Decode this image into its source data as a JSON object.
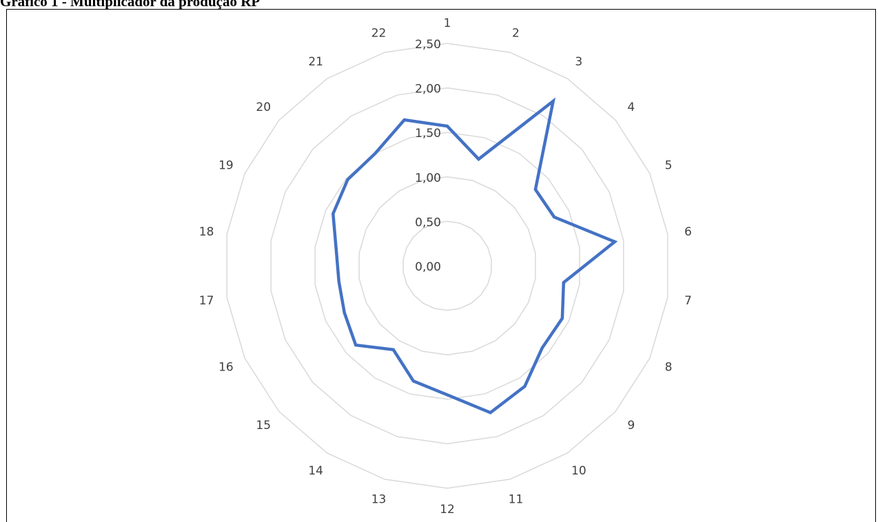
{
  "page": {
    "title": "Gráfico 1 - Multiplicador da produção RP"
  },
  "chart_data": {
    "type": "radar",
    "title": "",
    "categories": [
      "1",
      "2",
      "3",
      "4",
      "5",
      "6",
      "7",
      "8",
      "9",
      "10",
      "11",
      "12",
      "13",
      "14",
      "15",
      "16",
      "17",
      "18",
      "19",
      "20",
      "21",
      "22"
    ],
    "rlim": [
      0,
      2.5
    ],
    "ticks": [
      "0,00",
      "0,50",
      "1,00",
      "1,50",
      "2,00",
      "2,50"
    ],
    "tick_values": [
      0,
      0.5,
      1.0,
      1.5,
      2.0,
      2.5
    ],
    "grid": true,
    "series": [
      {
        "name": "",
        "color": "#4472C4",
        "values": [
          1.57,
          1.25,
          2.2,
          1.31,
          1.32,
          1.9,
          1.32,
          1.42,
          1.41,
          1.61,
          1.72,
          1.45,
          1.35,
          1.12,
          1.36,
          1.27,
          1.23,
          1.26,
          1.41,
          1.48,
          1.5,
          1.71
        ]
      }
    ]
  }
}
